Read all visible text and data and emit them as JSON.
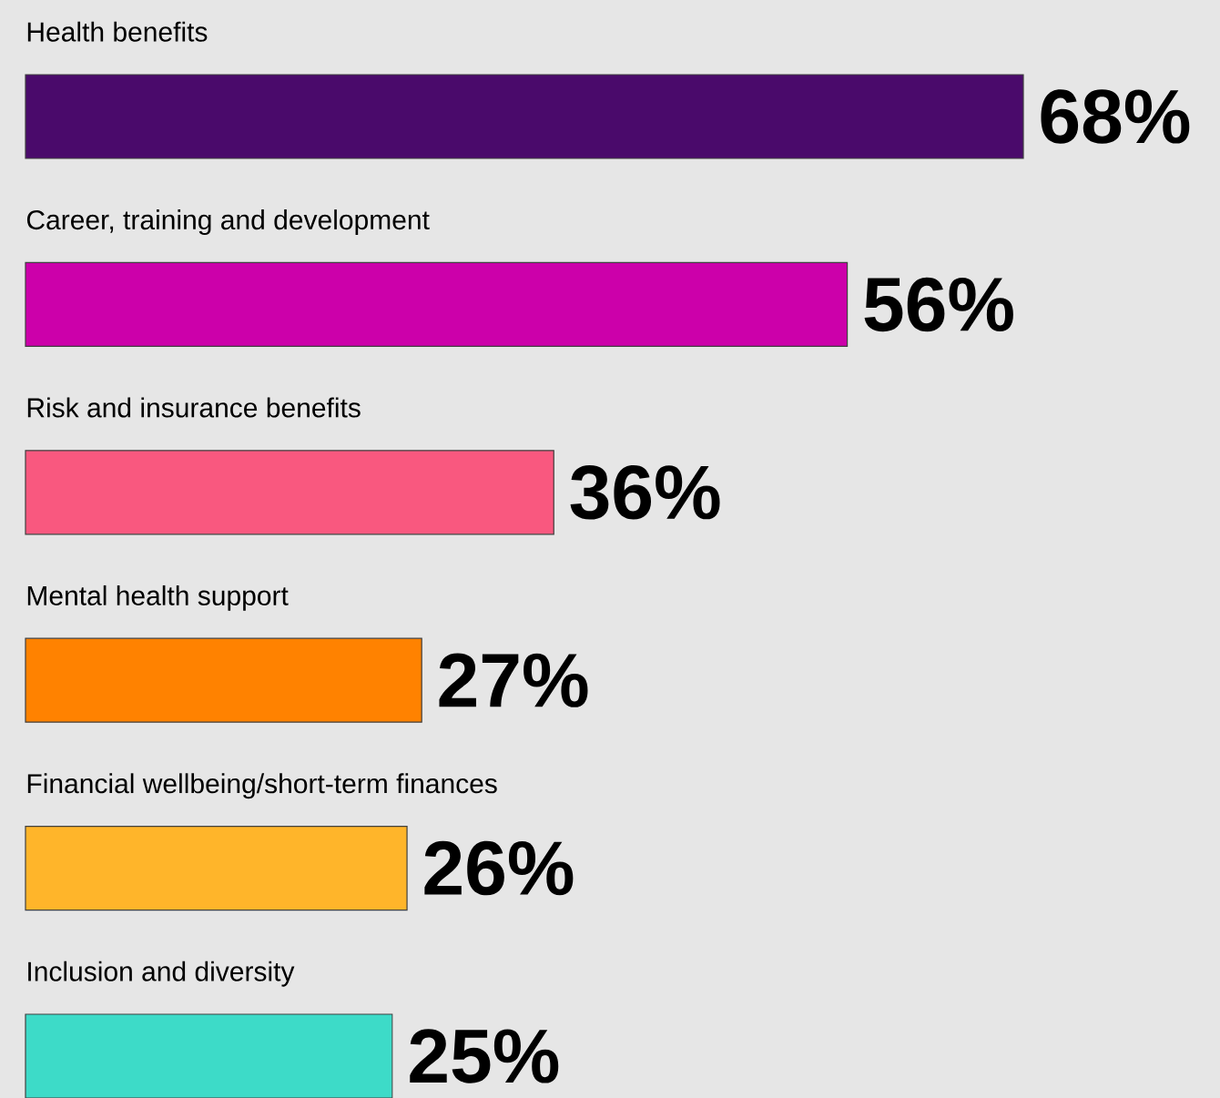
{
  "chart_data": {
    "type": "bar",
    "orientation": "horizontal",
    "categories": [
      "Health benefits",
      "Career, training and development",
      "Risk and insurance benefits",
      "Mental health support",
      "Financial wellbeing/short-term finances",
      "Inclusion and diversity"
    ],
    "values": [
      68,
      56,
      36,
      27,
      26,
      25
    ],
    "colors": [
      "#4a0a6b",
      "#cc00aa",
      "#f9587f",
      "#ff8200",
      "#ffb52a",
      "#3ddbc8"
    ],
    "value_labels": [
      "68%",
      "56%",
      "36%",
      "27%",
      "26%",
      "25%"
    ]
  }
}
